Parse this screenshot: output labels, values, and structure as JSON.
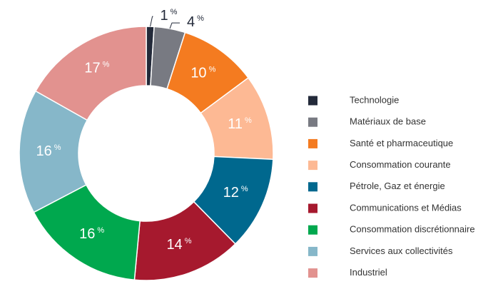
{
  "chart_data": {
    "type": "donut",
    "categories": [
      "Technologie",
      "Matériaux de base",
      "Santé et pharmaceutique",
      "Consommation courante",
      "Pétrole, Gaz et énergie",
      "Communications et Médias",
      "Consommation discrétionnaire",
      "Services aux collectivités",
      "Industriel"
    ],
    "values": [
      1,
      4,
      10,
      11,
      12,
      14,
      16,
      16,
      17
    ],
    "value_labels": [
      "1%",
      "4%",
      "10%",
      "11%",
      "12%",
      "14%",
      "16%",
      "16%",
      "17%"
    ],
    "colors": [
      "#232a3a",
      "#787a82",
      "#f47b20",
      "#fdb994",
      "#00688e",
      "#a6192e",
      "#00a84e",
      "#86b7c9",
      "#e2928f"
    ],
    "legend": "right"
  }
}
